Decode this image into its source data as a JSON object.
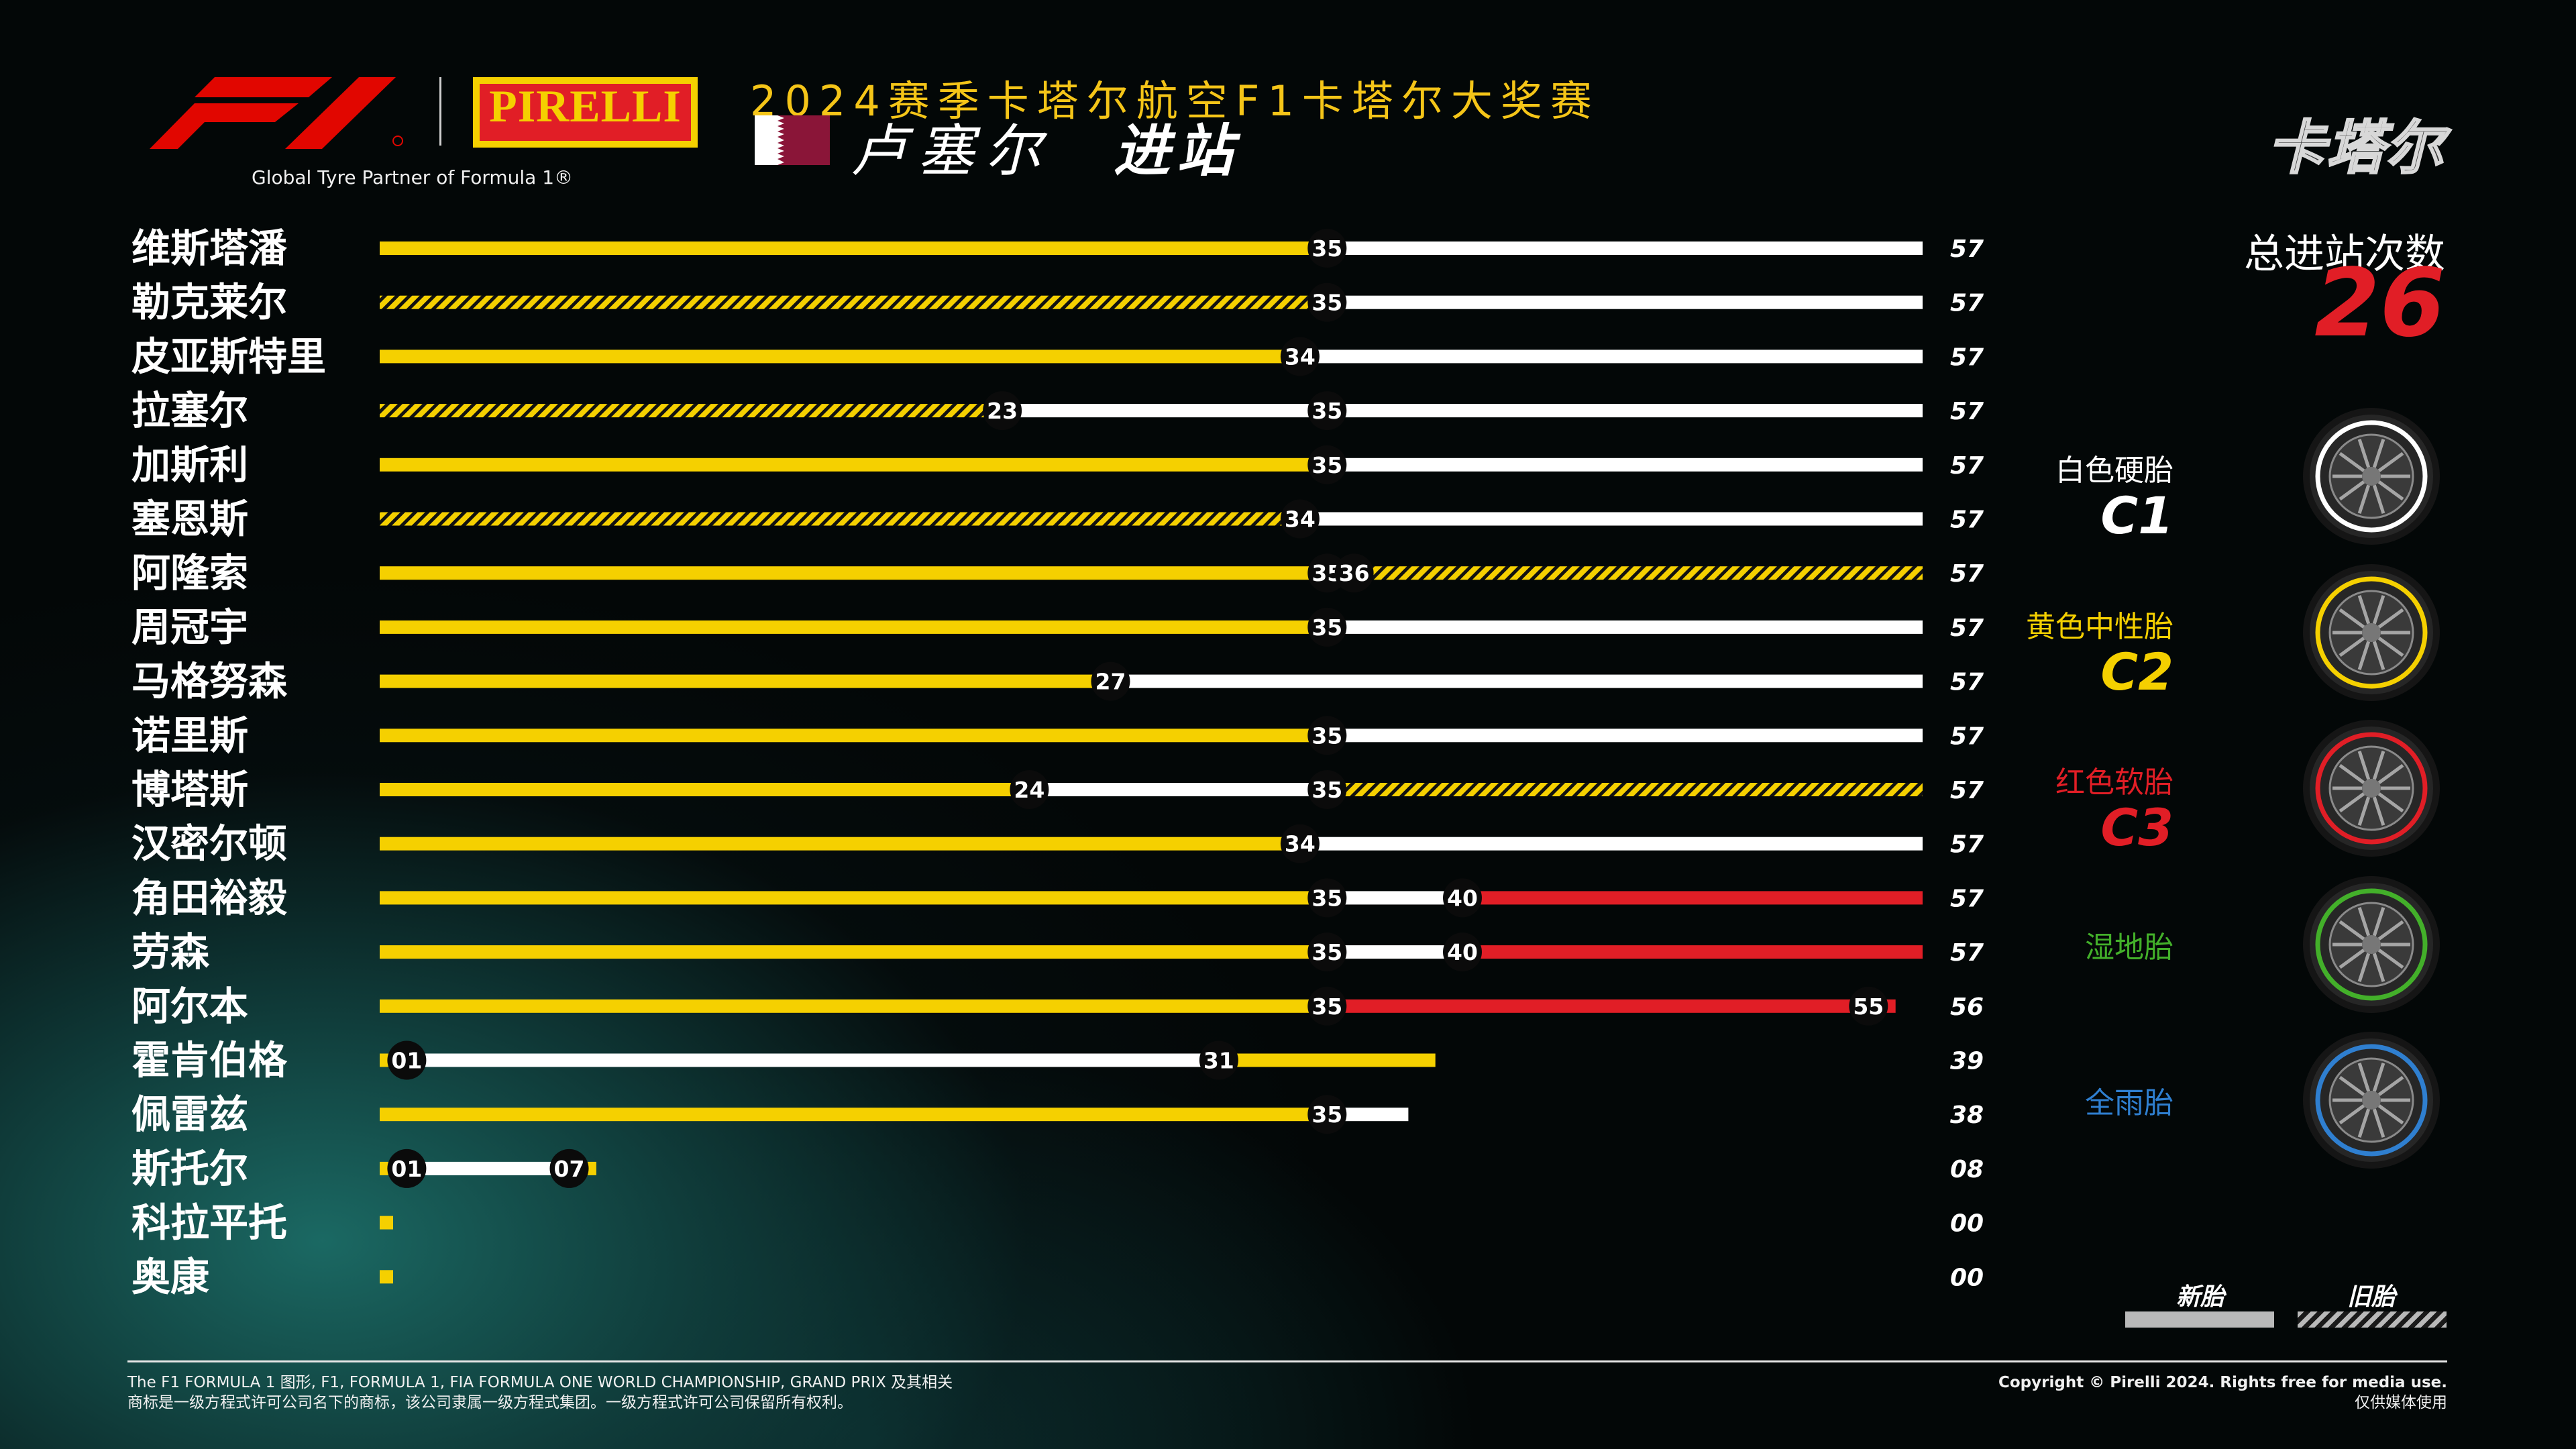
{
  "header": {
    "partner_text": "Global Tyre Partner of Formula 1®",
    "pirelli_logo_text": "PIRELLI",
    "title": "2024赛季卡塔尔航空F1卡塔尔大奖赛",
    "event_name": "卢塞尔",
    "event_subtitle": "进站",
    "location_tag": "卡塔尔"
  },
  "summary": {
    "total_label": "总进站次数",
    "total_value": "26"
  },
  "compounds": [
    {
      "name": "白色硬胎",
      "code": "C1",
      "color": "#ffffff",
      "icon": "hard-tyre-icon"
    },
    {
      "name": "黄色中性胎",
      "code": "C2",
      "color": "#f5d000",
      "icon": "medium-tyre-icon"
    },
    {
      "name": "红色软胎",
      "code": "C3",
      "color": "#e11e26",
      "icon": "soft-tyre-icon"
    },
    {
      "name": "湿地胎",
      "code": "",
      "color": "#43b02a",
      "icon": "intermediate-tyre-icon"
    },
    {
      "name": "全雨胎",
      "code": "",
      "color": "#2f7fd0",
      "icon": "wet-tyre-icon"
    }
  ],
  "legend": {
    "new_label": "新胎",
    "used_label": "旧胎"
  },
  "colors": {
    "hard": "#ffffff",
    "medium": "#f5d000",
    "soft": "#e11e26",
    "accent_red": "#e11e26",
    "title_yellow": "#f5c518"
  },
  "chart_data": {
    "type": "bar",
    "title": "2024赛季卡塔尔航空F1卡塔尔大奖赛",
    "subtitle": "卢塞尔 进站",
    "xlabel": "",
    "ylabel": "",
    "xlim": [
      0,
      57
    ],
    "grid": false,
    "legend_placement": "bottom-right",
    "drivers": [
      {
        "name": "维斯塔潘",
        "end_lap": "57",
        "stints": [
          {
            "compound": "medium",
            "used": false,
            "start": 0,
            "end": 35
          },
          {
            "compound": "hard",
            "used": false,
            "start": 35,
            "end": 57
          }
        ],
        "pit_laps": [
          "35"
        ]
      },
      {
        "name": "勒克莱尔",
        "end_lap": "57",
        "stints": [
          {
            "compound": "medium",
            "used": true,
            "start": 0,
            "end": 35
          },
          {
            "compound": "hard",
            "used": false,
            "start": 35,
            "end": 57
          }
        ],
        "pit_laps": [
          "35"
        ]
      },
      {
        "name": "皮亚斯特里",
        "end_lap": "57",
        "stints": [
          {
            "compound": "medium",
            "used": false,
            "start": 0,
            "end": 34
          },
          {
            "compound": "hard",
            "used": false,
            "start": 34,
            "end": 57
          }
        ],
        "pit_laps": [
          "34"
        ]
      },
      {
        "name": "拉塞尔",
        "end_lap": "57",
        "stints": [
          {
            "compound": "medium",
            "used": true,
            "start": 0,
            "end": 23
          },
          {
            "compound": "hard",
            "used": false,
            "start": 23,
            "end": 35
          },
          {
            "compound": "hard",
            "used": false,
            "start": 35,
            "end": 57
          }
        ],
        "pit_laps": [
          "23",
          "35"
        ]
      },
      {
        "name": "加斯利",
        "end_lap": "57",
        "stints": [
          {
            "compound": "medium",
            "used": false,
            "start": 0,
            "end": 35
          },
          {
            "compound": "hard",
            "used": false,
            "start": 35,
            "end": 57
          }
        ],
        "pit_laps": [
          "35"
        ]
      },
      {
        "name": "塞恩斯",
        "end_lap": "57",
        "stints": [
          {
            "compound": "medium",
            "used": true,
            "start": 0,
            "end": 34
          },
          {
            "compound": "hard",
            "used": false,
            "start": 34,
            "end": 57
          }
        ],
        "pit_laps": [
          "34"
        ]
      },
      {
        "name": "阿隆索",
        "end_lap": "57",
        "stints": [
          {
            "compound": "medium",
            "used": false,
            "start": 0,
            "end": 35
          },
          {
            "compound": "hard",
            "used": false,
            "start": 35,
            "end": 36
          },
          {
            "compound": "medium",
            "used": true,
            "start": 36,
            "end": 57
          }
        ],
        "pit_laps": [
          "35",
          "36"
        ]
      },
      {
        "name": "周冠宇",
        "end_lap": "57",
        "stints": [
          {
            "compound": "medium",
            "used": false,
            "start": 0,
            "end": 35
          },
          {
            "compound": "hard",
            "used": false,
            "start": 35,
            "end": 57
          }
        ],
        "pit_laps": [
          "35"
        ]
      },
      {
        "name": "马格努森",
        "end_lap": "57",
        "stints": [
          {
            "compound": "medium",
            "used": false,
            "start": 0,
            "end": 27
          },
          {
            "compound": "hard",
            "used": false,
            "start": 27,
            "end": 57
          }
        ],
        "pit_laps": [
          "27"
        ]
      },
      {
        "name": "诺里斯",
        "end_lap": "57",
        "stints": [
          {
            "compound": "medium",
            "used": false,
            "start": 0,
            "end": 35
          },
          {
            "compound": "hard",
            "used": false,
            "start": 35,
            "end": 57
          }
        ],
        "pit_laps": [
          "35"
        ]
      },
      {
        "name": "博塔斯",
        "end_lap": "57",
        "stints": [
          {
            "compound": "medium",
            "used": false,
            "start": 0,
            "end": 24
          },
          {
            "compound": "hard",
            "used": false,
            "start": 24,
            "end": 35
          },
          {
            "compound": "medium",
            "used": true,
            "start": 35,
            "end": 57
          }
        ],
        "pit_laps": [
          "24",
          "35"
        ]
      },
      {
        "name": "汉密尔顿",
        "end_lap": "57",
        "stints": [
          {
            "compound": "medium",
            "used": false,
            "start": 0,
            "end": 34
          },
          {
            "compound": "hard",
            "used": false,
            "start": 34,
            "end": 57
          }
        ],
        "pit_laps": [
          "34"
        ]
      },
      {
        "name": "角田裕毅",
        "end_lap": "57",
        "stints": [
          {
            "compound": "medium",
            "used": false,
            "start": 0,
            "end": 35
          },
          {
            "compound": "hard",
            "used": false,
            "start": 35,
            "end": 40
          },
          {
            "compound": "soft",
            "used": false,
            "start": 40,
            "end": 57
          }
        ],
        "pit_laps": [
          "35",
          "40"
        ]
      },
      {
        "name": "劳森",
        "end_lap": "57",
        "stints": [
          {
            "compound": "medium",
            "used": false,
            "start": 0,
            "end": 35
          },
          {
            "compound": "hard",
            "used": false,
            "start": 35,
            "end": 40
          },
          {
            "compound": "soft",
            "used": false,
            "start": 40,
            "end": 57
          }
        ],
        "pit_laps": [
          "35",
          "40"
        ]
      },
      {
        "name": "阿尔本",
        "end_lap": "56",
        "stints": [
          {
            "compound": "medium",
            "used": false,
            "start": 0,
            "end": 35
          },
          {
            "compound": "soft",
            "used": false,
            "start": 35,
            "end": 55
          },
          {
            "compound": "soft",
            "used": false,
            "start": 55,
            "end": 56
          }
        ],
        "pit_laps": [
          "35",
          "55"
        ]
      },
      {
        "name": "霍肯伯格",
        "end_lap": "39",
        "stints": [
          {
            "compound": "medium",
            "used": false,
            "start": 0,
            "end": 1
          },
          {
            "compound": "hard",
            "used": false,
            "start": 1,
            "end": 31
          },
          {
            "compound": "medium",
            "used": false,
            "start": 31,
            "end": 39
          }
        ],
        "pit_laps": [
          "01",
          "31"
        ]
      },
      {
        "name": "佩雷兹",
        "end_lap": "38",
        "stints": [
          {
            "compound": "medium",
            "used": false,
            "start": 0,
            "end": 35
          },
          {
            "compound": "hard",
            "used": false,
            "start": 35,
            "end": 38
          }
        ],
        "pit_laps": [
          "35"
        ]
      },
      {
        "name": "斯托尔",
        "end_lap": "08",
        "stints": [
          {
            "compound": "medium",
            "used": false,
            "start": 0,
            "end": 1
          },
          {
            "compound": "hard",
            "used": false,
            "start": 1,
            "end": 7
          },
          {
            "compound": "medium",
            "used": false,
            "start": 7,
            "end": 8
          }
        ],
        "pit_laps": [
          "01",
          "07"
        ]
      },
      {
        "name": "科拉平托",
        "end_lap": "00",
        "stints": [
          {
            "compound": "medium",
            "used": false,
            "start": 0,
            "end": 0
          }
        ],
        "pit_laps": []
      },
      {
        "name": "奥康",
        "end_lap": "00",
        "stints": [
          {
            "compound": "medium",
            "used": false,
            "start": 0,
            "end": 0
          }
        ],
        "pit_laps": []
      }
    ]
  },
  "footer": {
    "left_line1": "The F1 FORMULA 1 图形, F1, FORMULA 1, FIA FORMULA ONE WORLD CHAMPIONSHIP, GRAND PRIX 及其相关",
    "left_line2": "商标是一级方程式许可公司名下的商标，该公司隶属一级方程式集团。一级方程式许可公司保留所有权利。",
    "right_line1": "Copyright © Pirelli 2024. Rights free for media use.",
    "right_line2": "仅供媒体使用"
  }
}
